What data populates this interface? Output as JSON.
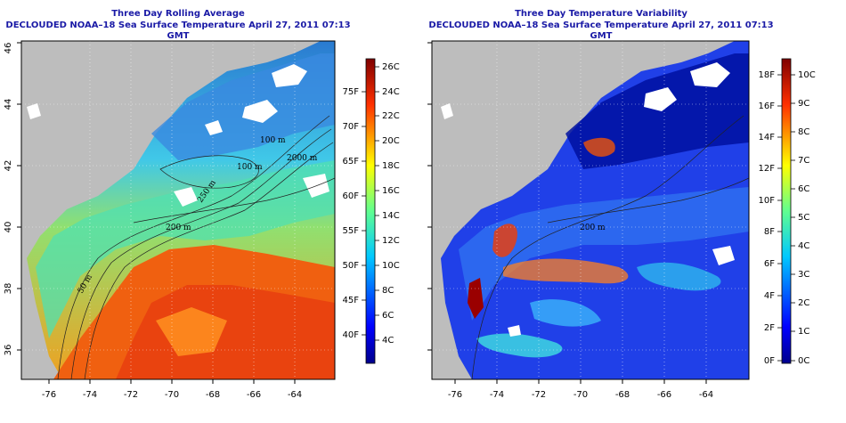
{
  "panels": [
    {
      "title": "Three Day Rolling Average",
      "subtitle": "DECLOUDED NOAA–18 Sea Surface Temperature April 27, 2011 07:13 GMT",
      "x_ticks": [
        "-76",
        "-74",
        "-72",
        "-70",
        "-68",
        "-66",
        "-64"
      ],
      "y_ticks": [
        "36",
        "38",
        "40",
        "42",
        "44",
        "46"
      ],
      "colorbar_celsius": [
        "26C",
        "24C",
        "22C",
        "20C",
        "18C",
        "16C",
        "14C",
        "12C",
        "10C",
        "8C",
        "6C",
        "4C"
      ],
      "colorbar_fahrenheit": [
        "75F",
        "70F",
        "65F",
        "60F",
        "55F",
        "50F",
        "45F",
        "40F"
      ],
      "contour_labels": [
        "100 m",
        "2000 m",
        "100 m",
        "250 m",
        "200 m",
        "50 m"
      ],
      "colors": {
        "land": "#c0c0c0",
        "cloud": "#ffffff",
        "title": "#1a1aa6"
      }
    },
    {
      "title": "Three Day Temperature Variability",
      "subtitle": "DECLOUDED NOAA–18 Sea Surface Temperature April 27, 2011 07:13 GMT",
      "x_ticks": [
        "-76",
        "-74",
        "-72",
        "-70",
        "-68",
        "-66",
        "-64"
      ],
      "y_ticks": [
        "36",
        "38",
        "40",
        "42",
        "44",
        "46"
      ],
      "colorbar_celsius": [
        "10C",
        "9C",
        "8C",
        "7C",
        "6C",
        "5C",
        "4C",
        "3C",
        "2C",
        "1C",
        "0C"
      ],
      "colorbar_fahrenheit": [
        "18F",
        "16F",
        "14F",
        "12F",
        "10F",
        "8F",
        "6F",
        "4F",
        "2F",
        "0F"
      ],
      "contour_labels": [
        "200 m"
      ],
      "colors": {
        "land": "#c0c0c0",
        "cloud": "#ffffff",
        "title": "#1a1aa6"
      }
    }
  ]
}
